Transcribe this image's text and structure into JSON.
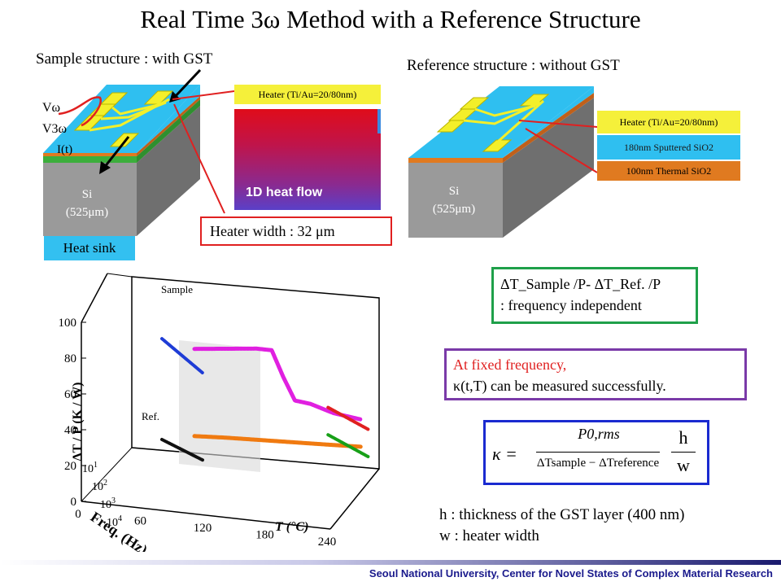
{
  "slide": {
    "title": "Real Time 3ω Method with a Reference Structure",
    "sample_label": "Sample structure : with GST",
    "reference_label": "Reference structure : without GST",
    "v_omega": "Vω",
    "v_3omega": "V3ω",
    "current_label": "I(t)",
    "si_sample": [
      "Si",
      "(525μm)"
    ],
    "si_reference": [
      "Si",
      "(525μm)"
    ],
    "heat_sink": "Heat sink",
    "heater_top_label": "Heater (Ti/Au=20/80nm)",
    "heat_flow_label": "1D heat flow",
    "heater_width_label": "Heater width : 32 μm",
    "ref_layers": {
      "heater": "Heater (Ti/Au=20/80nm)",
      "sputtered": "180nm Sputtered SiO2",
      "thermal": "100nm Thermal SiO2"
    },
    "freq_box": {
      "line1": "ΔT_Sample /P- ΔT_Ref. /P",
      "line2": ": frequency independent"
    },
    "fixed_freq_box": {
      "line1": "At fixed frequency,",
      "line2": "κ(t,T) can be measured successfully."
    },
    "formula": {
      "lhs": "κ =",
      "numerator": "P0,rms",
      "denominator": "ΔTsample − ΔTreference",
      "frac_num": "h",
      "frac_den": "w"
    },
    "notes": [
      "h : thickness of the GST layer (400 nm)",
      "w : heater width"
    ],
    "footer": {
      "prefix": "Seoul National University, ",
      "text": "Center for Novel States of Complex Material Research"
    }
  },
  "chart_data": {
    "type": "scatter",
    "title": "",
    "zlabel": "ΔT / P (K / W)",
    "xlabel": "T (°C)",
    "ylabel": "Freq. (Hz)",
    "z_ticks": [
      0,
      20,
      40,
      60,
      80,
      100
    ],
    "t_ticks": [
      0,
      60,
      120,
      180,
      240
    ],
    "freq_ticks": [
      "10^1",
      "10^2",
      "10^3",
      "10^4"
    ],
    "annotations": [
      "Sample",
      "Ref."
    ],
    "series": [
      {
        "name": "Sample",
        "color": "#1e3cd6",
        "description_points": [
          [
            20,
            79
          ],
          [
            20,
            59
          ]
        ]
      },
      {
        "name": "Ref.",
        "color": "#111111",
        "description_points": [
          [
            20,
            20
          ],
          [
            20,
            8
          ]
        ]
      },
      {
        "name": "",
        "color": "#e020e0",
        "values": [
          [
            20,
            73
          ],
          [
            60,
            75
          ],
          [
            100,
            77
          ],
          [
            120,
            77
          ],
          [
            135,
            62
          ],
          [
            150,
            49
          ],
          [
            170,
            48
          ],
          [
            200,
            44
          ],
          [
            235,
            42
          ]
        ]
      },
      {
        "name": "",
        "color": "#f07a10",
        "values": [
          [
            20,
            22
          ],
          [
            60,
            23
          ],
          [
            120,
            24
          ],
          [
            180,
            25
          ],
          [
            235,
            26
          ]
        ]
      },
      {
        "name": "",
        "color": "#e02020",
        "description_points": [
          [
            235,
            49
          ],
          [
            235,
            36
          ]
        ]
      },
      {
        "name": "",
        "color": "#18a018",
        "description_points": [
          [
            235,
            33
          ],
          [
            235,
            20
          ]
        ]
      }
    ]
  }
}
